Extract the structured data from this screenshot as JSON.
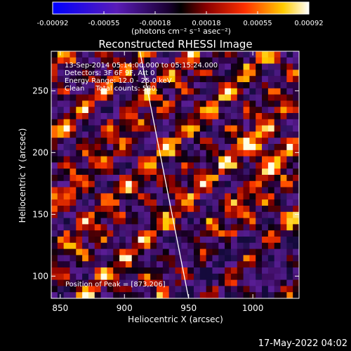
{
  "colorbar": {
    "ticks": [
      "-0.00092",
      "-0.00055",
      "-0.00018",
      "0.00018",
      "0.00055",
      "0.00092"
    ],
    "units": "(photons cm⁻² s⁻¹ asec⁻²)"
  },
  "title": "Reconstructed RHESSI Image",
  "info_lines": [
    "13-Sep-2014 05:14:00.000 to 05:15:24.000",
    "Detectors: 3F 6F 9F, Att 0",
    "Energy Range: 12.0 - 25.0 keV",
    "Clean     Total counts: 580."
  ],
  "peak_label": "Position of Peak = [873,206]",
  "footer": "17-May-2022 04:02",
  "colors": {
    "background": "#000000",
    "text": "#ffffff"
  },
  "chart_data": {
    "type": "heatmap",
    "title": "Reconstructed RHESSI Image",
    "xlabel": "Heliocentric X (arcsec)",
    "ylabel": "Heliocentric Y (arcsec)",
    "xlim": [
      843,
      1036
    ],
    "ylim": [
      82,
      282
    ],
    "x_ticks": [
      850,
      900,
      950,
      1000
    ],
    "y_ticks": [
      100,
      150,
      200,
      250
    ],
    "colorbar_range": [
      -0.00092,
      0.00092
    ],
    "colormap": "blue-purple-red-yellow-white",
    "peak": [
      873,
      206
    ],
    "limb_line": {
      "points": [
        [
          912,
          282
        ],
        [
          950,
          82
        ]
      ]
    }
  }
}
